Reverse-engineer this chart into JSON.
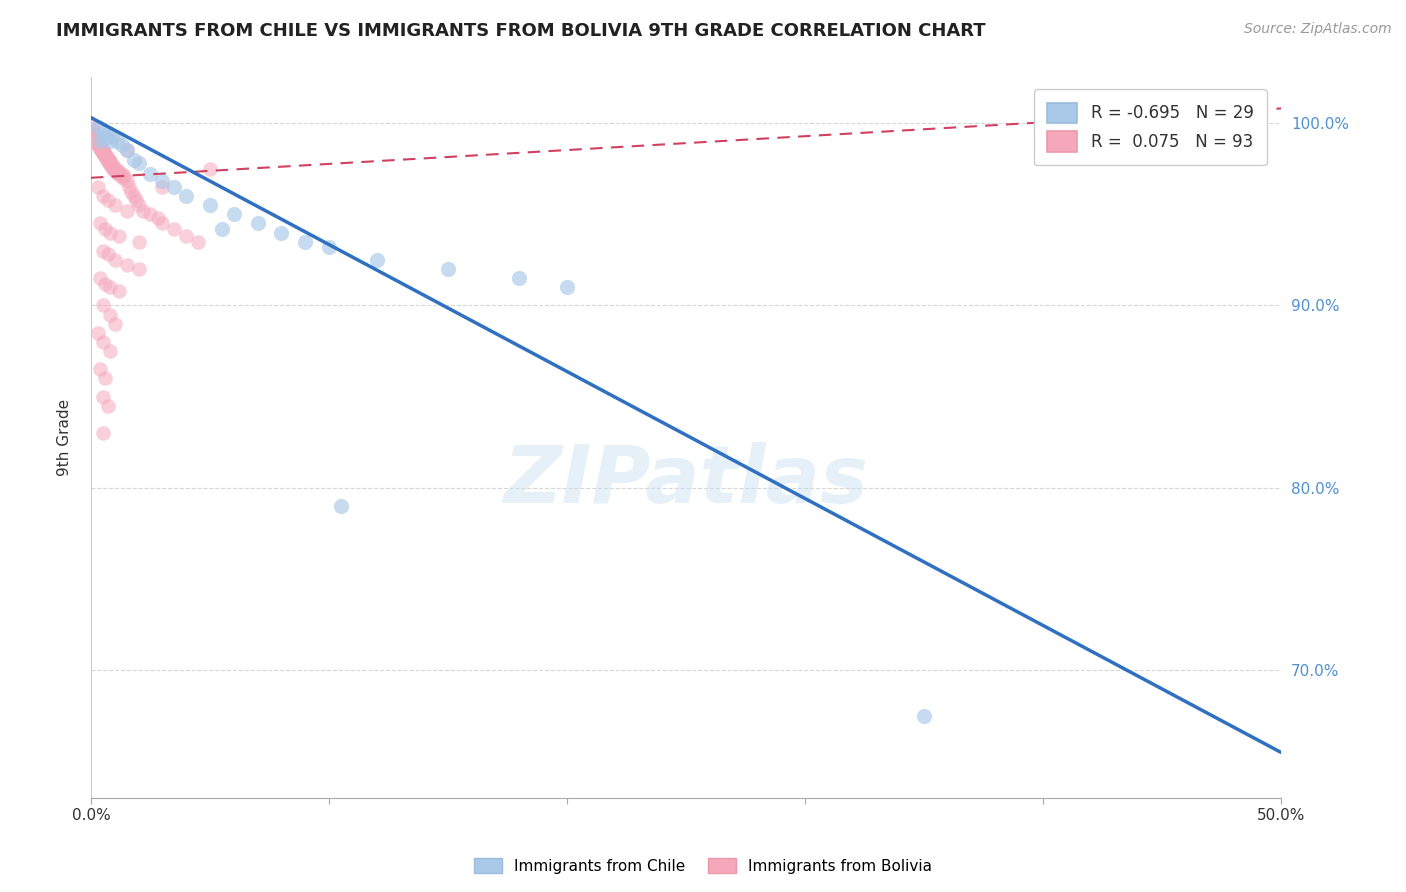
{
  "title": "IMMIGRANTS FROM CHILE VS IMMIGRANTS FROM BOLIVIA 9TH GRADE CORRELATION CHART",
  "source": "Source: ZipAtlas.com",
  "ylabel": "9th Grade",
  "xlim": [
    0.0,
    50.0
  ],
  "ylim": [
    63.0,
    102.5
  ],
  "yticks": [
    70.0,
    80.0,
    90.0,
    100.0
  ],
  "ytick_labels": [
    "70.0%",
    "80.0%",
    "90.0%",
    "100.0%"
  ],
  "chile_R": -0.695,
  "chile_N": 29,
  "bolivia_R": 0.075,
  "bolivia_N": 93,
  "chile_color": "#aac8e8",
  "bolivia_color": "#f5a8bc",
  "chile_line_color": "#3070c0",
  "bolivia_line_color": "#d04060",
  "watermark": "ZIPatlas",
  "legend_chile_r": "R = -0.695",
  "legend_chile_n": "N = 29",
  "legend_bolivia_r": "R =  0.075",
  "legend_bolivia_n": "N = 93",
  "bottom_legend_chile": "Immigrants from Chile",
  "bottom_legend_bolivia": "Immigrants from Bolivia",
  "chile_line_x": [
    0.0,
    50.0
  ],
  "chile_line_y": [
    100.3,
    65.5
  ],
  "bolivia_line_x": [
    0.0,
    50.0
  ],
  "bolivia_line_y": [
    97.0,
    100.8
  ],
  "chile_scatter": [
    [
      0.3,
      99.8
    ],
    [
      0.5,
      99.5
    ],
    [
      0.7,
      99.4
    ],
    [
      0.9,
      99.3
    ],
    [
      1.1,
      99.0
    ],
    [
      1.3,
      98.8
    ],
    [
      0.6,
      99.2
    ],
    [
      0.8,
      99.0
    ],
    [
      1.5,
      98.5
    ],
    [
      1.8,
      98.0
    ],
    [
      2.0,
      97.8
    ],
    [
      2.5,
      97.2
    ],
    [
      3.0,
      96.8
    ],
    [
      3.5,
      96.5
    ],
    [
      4.0,
      96.0
    ],
    [
      5.0,
      95.5
    ],
    [
      6.0,
      95.0
    ],
    [
      7.0,
      94.5
    ],
    [
      8.0,
      94.0
    ],
    [
      10.0,
      93.2
    ],
    [
      10.5,
      79.0
    ],
    [
      12.0,
      92.5
    ],
    [
      15.0,
      92.0
    ],
    [
      18.0,
      91.5
    ],
    [
      20.0,
      91.0
    ],
    [
      5.5,
      94.2
    ],
    [
      9.0,
      93.5
    ],
    [
      35.0,
      67.5
    ],
    [
      0.4,
      99.0
    ]
  ],
  "bolivia_scatter": [
    [
      0.05,
      99.8
    ],
    [
      0.08,
      99.6
    ],
    [
      0.1,
      99.5
    ],
    [
      0.12,
      99.3
    ],
    [
      0.15,
      99.2
    ],
    [
      0.18,
      99.0
    ],
    [
      0.2,
      99.1
    ],
    [
      0.22,
      98.9
    ],
    [
      0.25,
      99.0
    ],
    [
      0.28,
      98.8
    ],
    [
      0.3,
      98.9
    ],
    [
      0.32,
      98.7
    ],
    [
      0.35,
      98.8
    ],
    [
      0.38,
      98.6
    ],
    [
      0.4,
      98.7
    ],
    [
      0.42,
      98.5
    ],
    [
      0.45,
      98.6
    ],
    [
      0.48,
      98.4
    ],
    [
      0.5,
      98.5
    ],
    [
      0.52,
      98.3
    ],
    [
      0.55,
      98.4
    ],
    [
      0.58,
      98.2
    ],
    [
      0.6,
      98.3
    ],
    [
      0.62,
      98.1
    ],
    [
      0.65,
      98.2
    ],
    [
      0.68,
      98.0
    ],
    [
      0.7,
      98.1
    ],
    [
      0.72,
      97.9
    ],
    [
      0.75,
      98.0
    ],
    [
      0.78,
      97.8
    ],
    [
      0.8,
      97.9
    ],
    [
      0.82,
      97.7
    ],
    [
      0.85,
      97.8
    ],
    [
      0.88,
      97.6
    ],
    [
      0.9,
      97.7
    ],
    [
      0.92,
      97.5
    ],
    [
      0.95,
      97.6
    ],
    [
      0.98,
      97.4
    ],
    [
      1.0,
      97.5
    ],
    [
      1.05,
      97.3
    ],
    [
      1.1,
      97.4
    ],
    [
      1.15,
      97.2
    ],
    [
      1.2,
      97.3
    ],
    [
      1.25,
      97.1
    ],
    [
      1.3,
      97.2
    ],
    [
      1.35,
      97.0
    ],
    [
      1.4,
      97.1
    ],
    [
      1.5,
      96.8
    ],
    [
      1.6,
      96.5
    ],
    [
      1.7,
      96.2
    ],
    [
      1.8,
      96.0
    ],
    [
      1.9,
      95.8
    ],
    [
      2.0,
      95.5
    ],
    [
      2.2,
      95.2
    ],
    [
      2.5,
      95.0
    ],
    [
      2.8,
      94.8
    ],
    [
      3.0,
      94.5
    ],
    [
      3.5,
      94.2
    ],
    [
      4.0,
      93.8
    ],
    [
      4.5,
      93.5
    ],
    [
      0.3,
      96.5
    ],
    [
      0.5,
      96.0
    ],
    [
      0.7,
      95.8
    ],
    [
      1.0,
      95.5
    ],
    [
      1.5,
      95.2
    ],
    [
      0.4,
      94.5
    ],
    [
      0.6,
      94.2
    ],
    [
      0.8,
      94.0
    ],
    [
      1.2,
      93.8
    ],
    [
      2.0,
      93.5
    ],
    [
      0.5,
      93.0
    ],
    [
      0.7,
      92.8
    ],
    [
      1.0,
      92.5
    ],
    [
      1.5,
      92.2
    ],
    [
      2.0,
      92.0
    ],
    [
      0.4,
      91.5
    ],
    [
      0.6,
      91.2
    ],
    [
      0.8,
      91.0
    ],
    [
      1.2,
      90.8
    ],
    [
      0.5,
      90.0
    ],
    [
      0.8,
      89.5
    ],
    [
      1.0,
      89.0
    ],
    [
      0.3,
      88.5
    ],
    [
      0.5,
      88.0
    ],
    [
      0.8,
      87.5
    ],
    [
      0.4,
      86.5
    ],
    [
      0.6,
      86.0
    ],
    [
      0.5,
      85.0
    ],
    [
      0.7,
      84.5
    ],
    [
      0.5,
      83.0
    ],
    [
      1.5,
      98.5
    ],
    [
      5.0,
      97.5
    ],
    [
      3.0,
      96.5
    ]
  ]
}
